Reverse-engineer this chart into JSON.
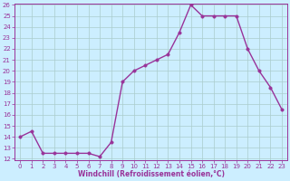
{
  "x": [
    0,
    1,
    2,
    3,
    4,
    5,
    6,
    7,
    8,
    9,
    10,
    11,
    12,
    13,
    14,
    15,
    16,
    17,
    18,
    19,
    20,
    21,
    22,
    23
  ],
  "y": [
    14,
    14.5,
    12.5,
    12.5,
    12.5,
    12.5,
    12.5,
    12.2,
    13.5,
    19,
    20,
    20.5,
    21,
    21.5,
    23.5,
    26,
    25,
    25,
    25,
    25,
    22,
    20,
    18.5,
    16.5
  ],
  "line_color": "#993399",
  "marker_color": "#993399",
  "bg_color": "#cceeff",
  "grid_color": "#aacccc",
  "xlabel": "Windchill (Refroidissement éolien,°C)",
  "ylim_min": 12,
  "ylim_max": 26,
  "xlim_min": -0.5,
  "xlim_max": 23.5,
  "yticks": [
    12,
    13,
    14,
    15,
    16,
    17,
    18,
    19,
    20,
    21,
    22,
    23,
    24,
    25,
    26
  ],
  "xticks": [
    0,
    1,
    2,
    3,
    4,
    5,
    6,
    7,
    8,
    9,
    10,
    11,
    12,
    13,
    14,
    15,
    16,
    17,
    18,
    19,
    20,
    21,
    22,
    23
  ],
  "xlabel_color": "#993399",
  "tick_color": "#993399",
  "marker_size": 2.5,
  "line_width": 1.0,
  "tick_labelsize": 5.0,
  "xlabel_fontsize": 5.5
}
